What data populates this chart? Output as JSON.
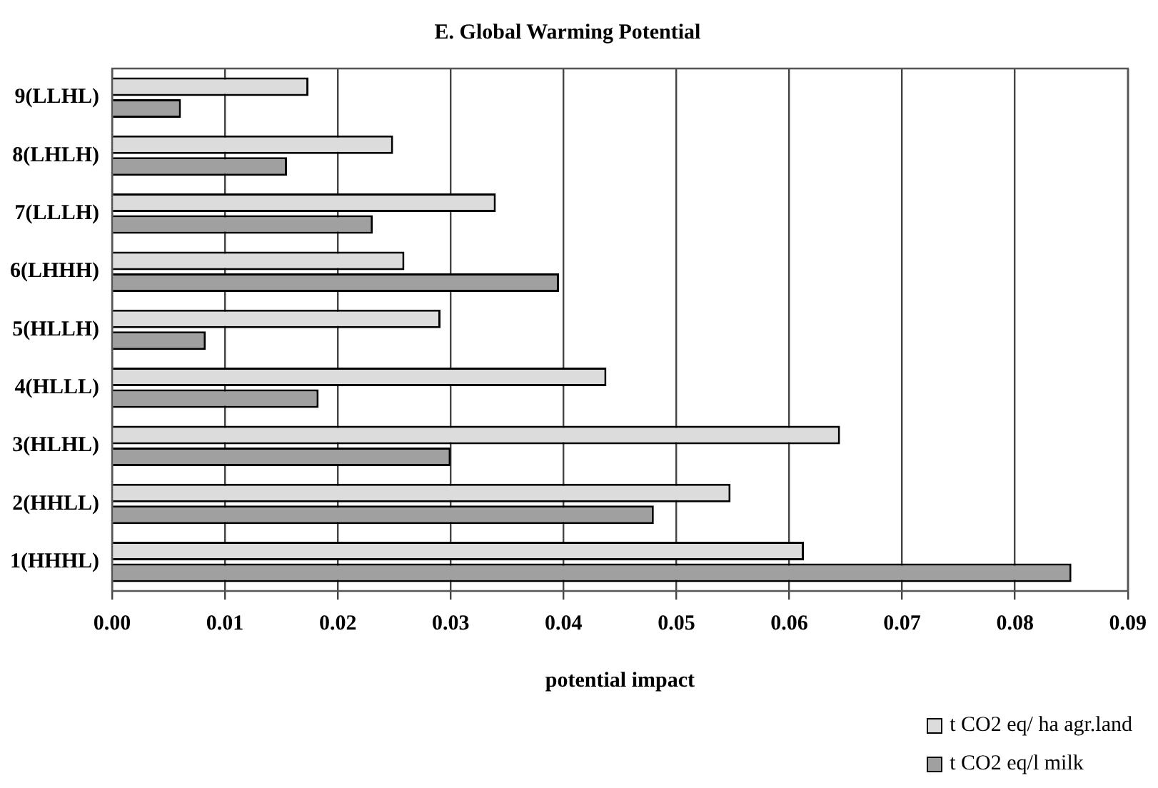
{
  "chart_data": {
    "type": "bar",
    "orientation": "horizontal",
    "title": "E. Global Warming Potential",
    "xlabel": "potential impact",
    "categories": [
      "9(LLHL)",
      "8(LHLH)",
      "7(LLLH)",
      "6(LHHH)",
      "5(HLLH)",
      "4(HLLL)",
      "3(HLHL)",
      "2(HHLL)",
      "1(HHHL)"
    ],
    "series": [
      {
        "name": "t CO2 eq/ ha agr.land",
        "color": "#dcdcdc",
        "values": [
          0.0174,
          0.0249,
          0.034,
          0.0259,
          0.0291,
          0.0438,
          0.0645,
          0.0548,
          0.0613
        ]
      },
      {
        "name": "t CO2 eq/l milk",
        "color": "#a0a0a0",
        "values": [
          0.0061,
          0.0155,
          0.0231,
          0.0396,
          0.0083,
          0.0183,
          0.03,
          0.048,
          0.085
        ]
      }
    ],
    "xlim": [
      0,
      0.09
    ],
    "xticks": [
      {
        "value": 0,
        "label": "0.00"
      },
      {
        "value": 0.01,
        "label": "0.01"
      },
      {
        "value": 0.02,
        "label": "0.02"
      },
      {
        "value": 0.03,
        "label": "0.03"
      },
      {
        "value": 0.04,
        "label": "0.04"
      },
      {
        "value": 0.05,
        "label": "0.05"
      },
      {
        "value": 0.06,
        "label": "0.06"
      },
      {
        "value": 0.07,
        "label": "0.07"
      },
      {
        "value": 0.08,
        "label": "0.08"
      },
      {
        "value": 0.09,
        "label": "0.09"
      }
    ],
    "grid": "x",
    "legend": "bottom right"
  }
}
